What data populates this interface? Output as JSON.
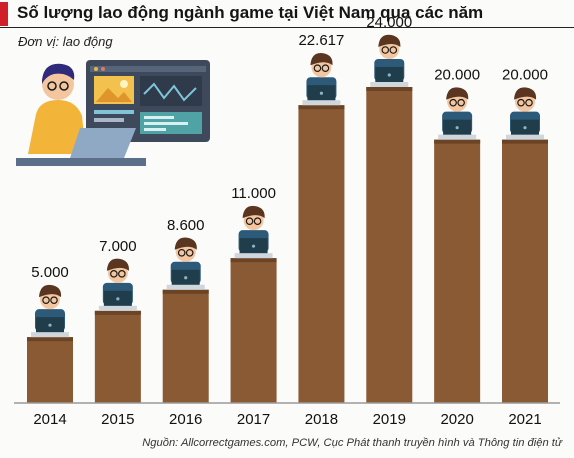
{
  "title": "Số lượng lao động ngành game tại Việt Nam qua các năm",
  "unit_label": "Đơn vị: lao động",
  "source": "Nguồn: Allcorrectgames.com, PCW, Cục Phát thanh truyền hình và Thông tin điện tử",
  "colors": {
    "accent": "#d11f2a",
    "bar": "#8a5a35",
    "bar_dark": "#6b4426",
    "laptop": "#1f3d4a",
    "shirt": "#2d5a78",
    "skin": "#f4c6a0",
    "hair": "#5a3520",
    "ground": "#9a9a9a"
  },
  "chart_data": {
    "type": "bar",
    "title": "Số lượng lao động ngành game tại Việt Nam qua các năm",
    "xlabel": "",
    "ylabel": "",
    "categories": [
      "2014",
      "2015",
      "2016",
      "2017",
      "2018",
      "2019",
      "2020",
      "2021"
    ],
    "values": [
      5000,
      7000,
      8600,
      11000,
      22617,
      24000,
      20000,
      20000
    ],
    "labels": [
      "5.000",
      "7.000",
      "8.600",
      "11.000",
      "22.617",
      "24.000",
      "20.000",
      "20.000"
    ],
    "ylim": [
      0,
      24000
    ],
    "grid": false
  }
}
